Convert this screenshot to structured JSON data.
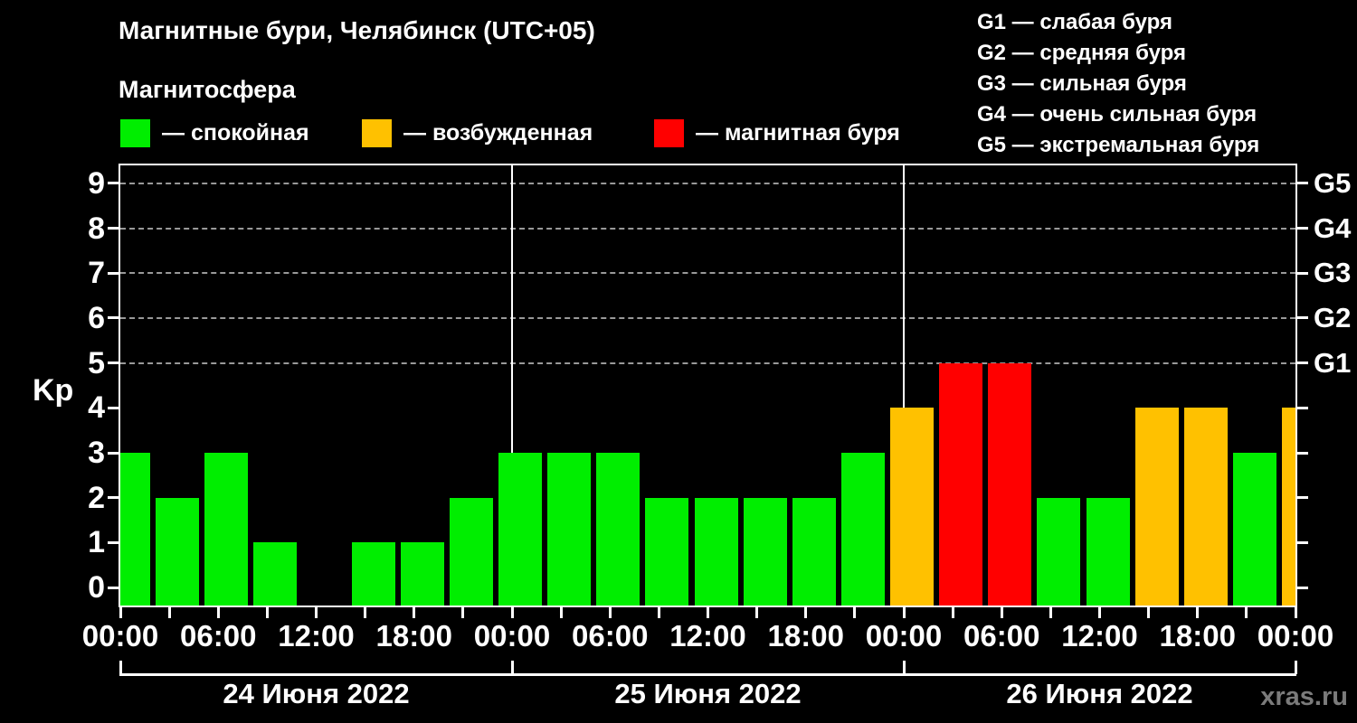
{
  "header": {
    "title": "Магнитные бури, Челябинск (UTC+05)",
    "subtitle": "Магнитосфера",
    "watermark": "xras.ru"
  },
  "legend": {
    "items": [
      {
        "key": "quiet",
        "label": "— спокойная",
        "color": "#00EE00"
      },
      {
        "key": "excited",
        "label": "— возбужденная",
        "color": "#FFC100"
      },
      {
        "key": "storm",
        "label": "— магнитная буря",
        "color": "#FF0000"
      }
    ]
  },
  "storm_scale_legend": {
    "items": [
      {
        "label": "G1 — слабая буря"
      },
      {
        "label": "G2 — средняя буря"
      },
      {
        "label": "G3 — сильная буря"
      },
      {
        "label": "G4 — очень сильная буря"
      },
      {
        "label": "G5 — экстремальная буря"
      }
    ]
  },
  "chart_data": {
    "type": "bar",
    "title": "Магнитные бури, Челябинск (UTC+05)",
    "ylabel": "Kp",
    "ylim": [
      0,
      9
    ],
    "ylim_drawn": [
      -0.4,
      9.4
    ],
    "y_ticks": [
      0,
      1,
      2,
      3,
      4,
      5,
      6,
      7,
      8,
      9
    ],
    "grid_levels": [
      5,
      6,
      7,
      8,
      9
    ],
    "grid_color": "#999999",
    "right_axis": [
      {
        "kp": 5,
        "label": "G1"
      },
      {
        "kp": 6,
        "label": "G2"
      },
      {
        "kp": 7,
        "label": "G3"
      },
      {
        "kp": 8,
        "label": "G4"
      },
      {
        "kp": 9,
        "label": "G5"
      }
    ],
    "total_hours": 72,
    "x_minor_tick_every_hours": 3,
    "x_tick_labels": [
      {
        "hour": 0,
        "label": "00:00"
      },
      {
        "hour": 6,
        "label": "06:00"
      },
      {
        "hour": 12,
        "label": "12:00"
      },
      {
        "hour": 18,
        "label": "18:00"
      },
      {
        "hour": 24,
        "label": "00:00"
      },
      {
        "hour": 30,
        "label": "06:00"
      },
      {
        "hour": 36,
        "label": "12:00"
      },
      {
        "hour": 42,
        "label": "18:00"
      },
      {
        "hour": 48,
        "label": "00:00"
      },
      {
        "hour": 54,
        "label": "06:00"
      },
      {
        "hour": 60,
        "label": "12:00"
      },
      {
        "hour": 66,
        "label": "18:00"
      },
      {
        "hour": 72,
        "label": "00:00"
      }
    ],
    "days": [
      {
        "label": "24 Июня 2022",
        "start_hour": 0
      },
      {
        "label": "25 Июня 2022",
        "start_hour": 24
      },
      {
        "label": "26 Июня 2022",
        "start_hour": 48
      }
    ],
    "bars": [
      {
        "hour": 0,
        "kp": 3
      },
      {
        "hour": 3,
        "kp": 2
      },
      {
        "hour": 6,
        "kp": 3
      },
      {
        "hour": 9,
        "kp": 1
      },
      {
        "hour": 12,
        "kp": 0
      },
      {
        "hour": 15,
        "kp": 1
      },
      {
        "hour": 18,
        "kp": 1
      },
      {
        "hour": 21,
        "kp": 2
      },
      {
        "hour": 24,
        "kp": 3
      },
      {
        "hour": 27,
        "kp": 3
      },
      {
        "hour": 30,
        "kp": 3
      },
      {
        "hour": 33,
        "kp": 2
      },
      {
        "hour": 36,
        "kp": 2
      },
      {
        "hour": 39,
        "kp": 2
      },
      {
        "hour": 42,
        "kp": 2
      },
      {
        "hour": 45,
        "kp": 3
      },
      {
        "hour": 48,
        "kp": 4
      },
      {
        "hour": 51,
        "kp": 5
      },
      {
        "hour": 54,
        "kp": 5
      },
      {
        "hour": 57,
        "kp": 2
      },
      {
        "hour": 60,
        "kp": 2
      },
      {
        "hour": 63,
        "kp": 4
      },
      {
        "hour": 66,
        "kp": 4
      },
      {
        "hour": 69,
        "kp": 3
      },
      {
        "hour": 72,
        "kp": 4
      }
    ],
    "colors": {
      "quiet": "#00EE00",
      "excited": "#FFC100",
      "storm": "#FF0000"
    },
    "status_rules": {
      "storm_min_kp": 5,
      "excited_kp": 4
    }
  }
}
